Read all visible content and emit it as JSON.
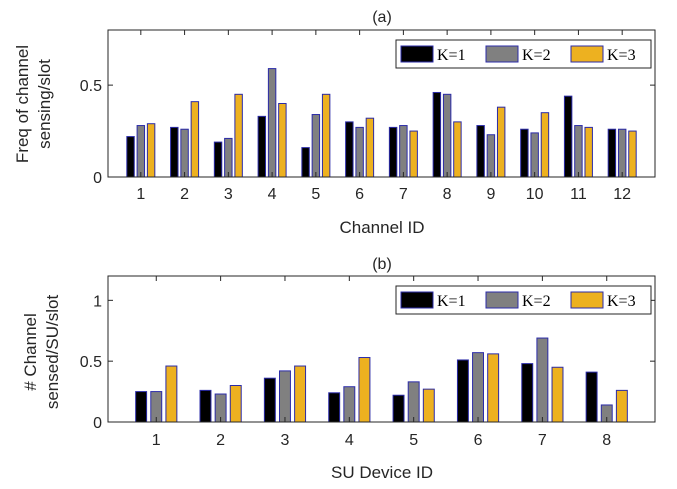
{
  "chart_data": [
    {
      "type": "bar",
      "title": "(a)",
      "xlabel": "Channel ID",
      "ylabel_lines": [
        "Freq of channel",
        "sensing/slot"
      ],
      "ylim": [
        0,
        0.8
      ],
      "yticks": [
        0,
        0.5
      ],
      "ytick_labels": [
        "0",
        "0.5"
      ],
      "categories": [
        "1",
        "2",
        "3",
        "4",
        "5",
        "6",
        "7",
        "8",
        "9",
        "10",
        "11",
        "12"
      ],
      "grid": false,
      "legend_position": "top-right",
      "series": [
        {
          "name": "K=1",
          "color": "#000000",
          "values": [
            0.22,
            0.27,
            0.19,
            0.33,
            0.16,
            0.3,
            0.27,
            0.46,
            0.28,
            0.26,
            0.44,
            0.26
          ]
        },
        {
          "name": "K=2",
          "color": "#808080",
          "values": [
            0.28,
            0.26,
            0.21,
            0.59,
            0.34,
            0.27,
            0.28,
            0.45,
            0.23,
            0.24,
            0.28,
            0.26
          ]
        },
        {
          "name": "K=3",
          "color": "#EDB120",
          "values": [
            0.29,
            0.41,
            0.45,
            0.4,
            0.45,
            0.32,
            0.25,
            0.3,
            0.38,
            0.35,
            0.27,
            0.25
          ]
        }
      ]
    },
    {
      "type": "bar",
      "title": "(b)",
      "xlabel": "SU Device ID",
      "ylabel_lines": [
        "# Channel",
        "sensed/SU/slot"
      ],
      "ylim": [
        0,
        1.2
      ],
      "yticks": [
        0,
        0.5,
        1
      ],
      "ytick_labels": [
        "0",
        "0.5",
        "1"
      ],
      "categories": [
        "1",
        "2",
        "3",
        "4",
        "5",
        "6",
        "7",
        "8"
      ],
      "grid": false,
      "legend_position": "top-right",
      "series": [
        {
          "name": "K=1",
          "color": "#000000",
          "values": [
            0.25,
            0.26,
            0.36,
            0.24,
            0.22,
            0.51,
            0.48,
            0.41
          ]
        },
        {
          "name": "K=2",
          "color": "#808080",
          "values": [
            0.25,
            0.23,
            0.42,
            0.29,
            0.33,
            0.57,
            0.69,
            0.14
          ]
        },
        {
          "name": "K=3",
          "color": "#EDB120",
          "values": [
            0.46,
            0.3,
            0.46,
            0.53,
            0.27,
            0.56,
            0.45,
            0.26
          ]
        }
      ]
    }
  ],
  "colors": {
    "bar_edge": "#2B2BA8",
    "axis": "#262626"
  }
}
